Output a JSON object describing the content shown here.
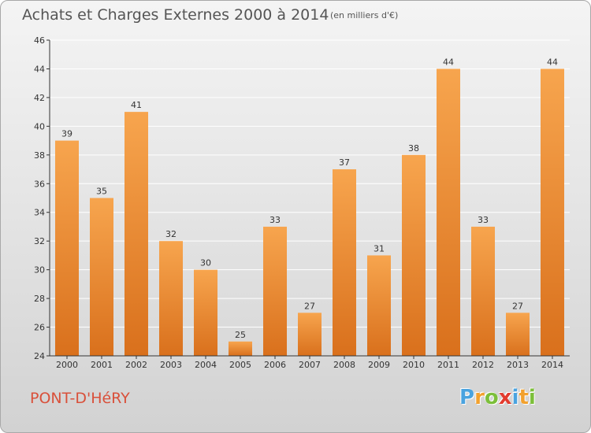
{
  "title": "Achats et Charges Externes 2000 à 2014",
  "subtitle": "(en milliers d'€)",
  "place": "PONT-D'HéRY",
  "brand": {
    "letters": [
      "P",
      "r",
      "o",
      "x",
      "i",
      "t",
      "i"
    ],
    "colors": [
      "#4aa3df",
      "#f2a12e",
      "#7cbf3a",
      "#e23b2e",
      "#4aa3df",
      "#f2a12e",
      "#7cbf3a"
    ]
  },
  "colors": {
    "bar_top": "#f7a54e",
    "bar_bottom": "#d9701c",
    "axis": "#333333",
    "grid": "#ffffff"
  },
  "chart_data": {
    "type": "bar",
    "title": "Achats et Charges Externes 2000 à 2014",
    "categories": [
      "2000",
      "2001",
      "2002",
      "2003",
      "2004",
      "2005",
      "2006",
      "2007",
      "2008",
      "2009",
      "2010",
      "2011",
      "2012",
      "2013",
      "2014"
    ],
    "values": [
      39,
      35,
      41,
      32,
      30,
      25,
      33,
      27,
      37,
      31,
      38,
      44,
      33,
      27,
      44
    ],
    "ylim": [
      24,
      46
    ],
    "yticks": [
      24,
      26,
      28,
      30,
      32,
      34,
      36,
      38,
      40,
      42,
      44,
      46
    ],
    "grid": true
  }
}
